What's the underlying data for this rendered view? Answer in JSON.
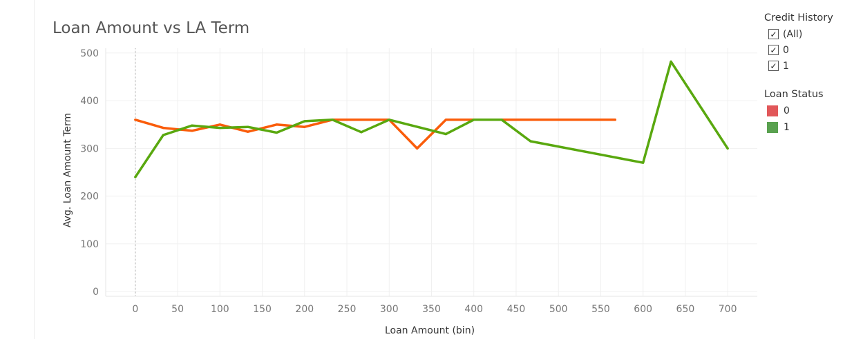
{
  "title": "Loan Amount vs LA Term",
  "chart_data": {
    "type": "line",
    "title": "Loan Amount vs LA Term",
    "xlabel": "Loan Amount (bin)",
    "ylabel": "Avg. Loan Amount Term",
    "xlim": [
      -35,
      735
    ],
    "ylim": [
      -10,
      510
    ],
    "x_ticks": [
      0,
      50,
      100,
      150,
      200,
      250,
      300,
      350,
      400,
      450,
      500,
      550,
      600,
      650,
      700
    ],
    "y_ticks": [
      0,
      100,
      200,
      300,
      400,
      500
    ],
    "grid": true,
    "series": [
      {
        "name": "0",
        "color": "#fa5c0a",
        "x": [
          0,
          33,
          67,
          100,
          133,
          167,
          200,
          233,
          267,
          300,
          333,
          367,
          400,
          433,
          467,
          500,
          533,
          567
        ],
        "y": [
          360,
          343,
          337,
          350,
          335,
          350,
          345,
          360,
          360,
          360,
          300,
          360,
          360,
          360,
          360,
          360,
          360,
          360
        ]
      },
      {
        "name": "1",
        "color": "#59a80f",
        "x": [
          0,
          33,
          67,
          100,
          133,
          167,
          200,
          233,
          267,
          300,
          367,
          400,
          433,
          467,
          600,
          633,
          700
        ],
        "y": [
          240,
          328,
          348,
          343,
          345,
          333,
          357,
          360,
          334,
          360,
          330,
          360,
          360,
          315,
          270,
          482,
          300
        ]
      }
    ]
  },
  "legend": {
    "credit_history": {
      "title": "Credit History",
      "items": [
        {
          "label": "(All)",
          "checked": true
        },
        {
          "label": "0",
          "checked": true
        },
        {
          "label": "1",
          "checked": true
        }
      ]
    },
    "loan_status": {
      "title": "Loan Status",
      "items": [
        {
          "label": "0",
          "color": "#e15759"
        },
        {
          "label": "1",
          "color": "#59a14f"
        }
      ]
    }
  }
}
